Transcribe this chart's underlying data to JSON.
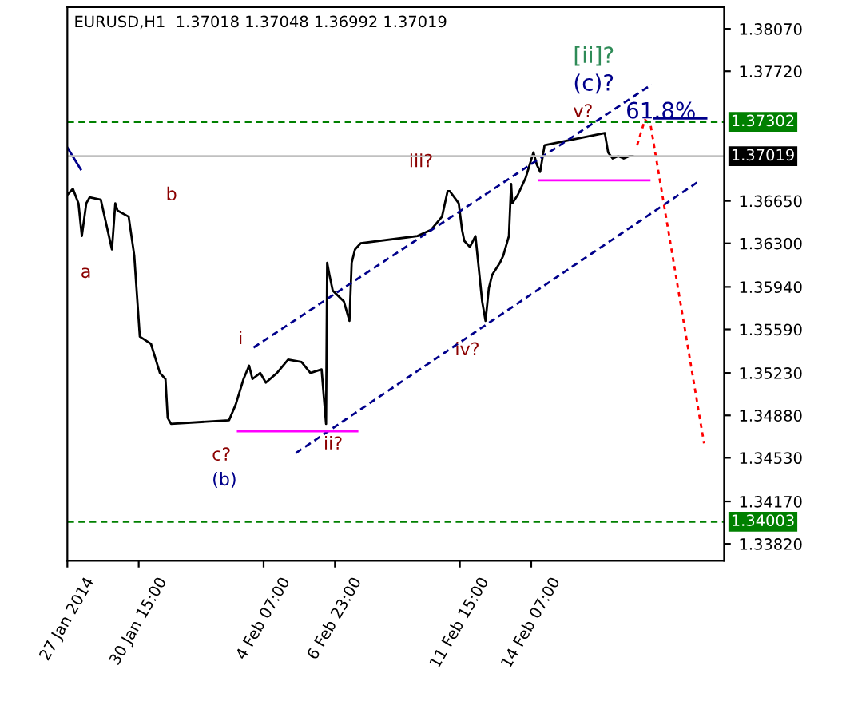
{
  "chart_data": {
    "type": "line",
    "title": "EURUSD,H1  1.37018 1.37048 1.36992 1.37019",
    "series": [
      {
        "color": "#000000",
        "line_style": "solid",
        "x": [
          "2014-01-27T23:00",
          "2014-01-28T04:00",
          "2014-01-28T09:00",
          "2014-01-28T12:00",
          "2014-01-28T16:00",
          "2014-01-28T19:00",
          "2014-01-29T05:00",
          "2014-01-29T15:00",
          "2014-01-29T18:00",
          "2014-01-29T20:00",
          "2014-01-30T06:00",
          "2014-01-30T11:00",
          "2014-01-30T13:00",
          "2014-01-30T16:00",
          "2014-01-30T21:00",
          "2014-01-31T02:00",
          "2014-01-31T10:00",
          "2014-01-31T15:00",
          "2014-01-31T17:00",
          "2014-01-31T20:00",
          "2014-02-03T00:00",
          "2014-02-03T06:00",
          "2014-02-03T13:00",
          "2014-02-03T18:00",
          "2014-02-03T21:00",
          "2014-02-04T04:00",
          "2014-02-04T09:00",
          "2014-02-04T19:00",
          "2014-02-05T05:00",
          "2014-02-05T17:00",
          "2014-02-06T01:00",
          "2014-02-06T11:00",
          "2014-02-06T15:00",
          "2014-02-06T16:00",
          "2014-02-06T18:00",
          "2014-02-06T21:00",
          "2014-02-07T07:00",
          "2014-02-07T12:00",
          "2014-02-07T14:00",
          "2014-02-07T17:00",
          "2014-02-07T22:00",
          "2014-02-10T01:00",
          "2014-02-10T13:00",
          "2014-02-10T23:00",
          "2014-02-11T04:00",
          "2014-02-11T06:00",
          "2014-02-11T14:00",
          "2014-02-11T17:00",
          "2014-02-11T19:00",
          "2014-02-12T00:00",
          "2014-02-12T05:00",
          "2014-02-12T11:00",
          "2014-02-12T14:00",
          "2014-02-12T17:00",
          "2014-02-12T20:00",
          "2014-02-13T03:00",
          "2014-02-13T06:00",
          "2014-02-13T11:00",
          "2014-02-13T13:00",
          "2014-02-13T14:00",
          "2014-02-13T19:00",
          "2014-02-14T02:00",
          "2014-02-14T09:00",
          "2014-02-14T12:00",
          "2014-02-14T15:00",
          "2014-02-14T19:00",
          "2014-02-17T01:00",
          "2014-02-17T04:00",
          "2014-02-17T08:00",
          "2014-02-17T13:00",
          "2014-02-17T18:00",
          "2014-02-17T23:00",
          "2014-02-18T02:00"
        ],
        "values": [
          1.367,
          1.3675,
          1.3663,
          1.3636,
          1.3663,
          1.3668,
          1.3666,
          1.3625,
          1.3663,
          1.3657,
          1.3652,
          1.362,
          1.3593,
          1.3553,
          1.355,
          1.3547,
          1.3523,
          1.3518,
          1.3486,
          1.3481,
          1.3484,
          1.3497,
          1.3518,
          1.3529,
          1.3518,
          1.3523,
          1.3515,
          1.3523,
          1.3534,
          1.3532,
          1.3523,
          1.3526,
          1.3481,
          1.3614,
          1.3604,
          1.3591,
          1.3582,
          1.3566,
          1.3614,
          1.3625,
          1.363,
          1.3636,
          1.3641,
          1.3652,
          1.3673,
          1.3673,
          1.3663,
          1.3641,
          1.3632,
          1.3627,
          1.3636,
          1.3582,
          1.3566,
          1.3593,
          1.3604,
          1.3614,
          1.362,
          1.3636,
          1.3679,
          1.3663,
          1.367,
          1.3684,
          1.3705,
          1.3695,
          1.3689,
          1.3711,
          1.3721,
          1.3705,
          1.37,
          1.3702,
          1.37,
          1.3702,
          1.3702
        ]
      },
      {
        "color": "#00008b",
        "line_style": "dashed",
        "x": [
          "2014-02-03T22:00",
          "2014-02-18T19:00"
        ],
        "values": [
          1.3544,
          1.3761
        ]
      },
      {
        "color": "#00008b",
        "line_style": "dashed",
        "x": [
          "2014-02-05T12:00",
          "2014-02-20T13:00"
        ],
        "values": [
          1.3457,
          1.3681
        ]
      },
      {
        "color": "#00008b",
        "line_style": "solid",
        "x": [
          "2014-01-27T23:00",
          "2014-01-28T11:00"
        ],
        "values": [
          1.3709,
          1.3691
        ]
      },
      {
        "color": "#ff0000",
        "line_style": "dotted",
        "x": [
          "2014-02-18T06:00",
          "2014-02-18T13:00",
          "2014-02-18T18:00",
          "2014-02-20T18:00"
        ],
        "values": [
          1.3711,
          1.3732,
          1.3728,
          1.3465
        ]
      },
      {
        "color": "#ff00ff",
        "line_style": "solid",
        "x": [
          "2014-02-03T08:00",
          "2014-02-07T19:00"
        ],
        "values": [
          1.3475,
          1.3475
        ]
      },
      {
        "color": "#ff00ff",
        "line_style": "solid",
        "x": [
          "2014-02-14T14:00",
          "2014-02-18T17:00"
        ],
        "values": [
          1.3682,
          1.3682
        ]
      },
      {
        "color": "#00008b",
        "line_style": "solid",
        "x": [
          "2014-02-18T21:00",
          "2014-02-20T20:00"
        ],
        "values": [
          1.3733,
          1.3733
        ]
      }
    ],
    "annotations": [
      "a",
      "b",
      "c?",
      "(b)",
      "i",
      "ii?",
      "iii?",
      "iv?",
      "v?",
      "(c)?",
      "[ii]?",
      "61.8%"
    ],
    "ref_lines": [
      {
        "axis": "y",
        "value": 1.37302,
        "label": "1.37302",
        "color": "#008000",
        "line_style": "dashed"
      },
      {
        "axis": "y",
        "value": 1.37019,
        "label": "1.37019",
        "color": "#c0c0c0",
        "line_style": "solid"
      },
      {
        "axis": "y",
        "value": 1.34003,
        "label": "1.34003",
        "color": "#008000",
        "line_style": "dashed"
      }
    ],
    "xlim": [
      "2014-01-27T23:00",
      "2014-02-21T12:00"
    ],
    "ylim": [
      1.3368,
      1.3825
    ],
    "xticks": [
      {
        "value": "2014-01-27T23:00",
        "label": "27 Jan 2014"
      },
      {
        "value": "2014-01-30T15:00",
        "label": "30 Jan 15:00"
      },
      {
        "value": "2014-02-04T07:00",
        "label": "4 Feb 07:00"
      },
      {
        "value": "2014-02-06T23:00",
        "label": "6 Feb 23:00"
      },
      {
        "value": "2014-02-11T15:00",
        "label": "11 Feb 15:00"
      },
      {
        "value": "2014-02-14T07:00",
        "label": "14 Feb 07:00"
      }
    ],
    "yticks": [
      {
        "value": 1.3807,
        "label": "1.38070"
      },
      {
        "value": 1.3772,
        "label": "1.37720"
      },
      {
        "value": 1.3665,
        "label": "1.36650"
      },
      {
        "value": 1.363,
        "label": "1.36300"
      },
      {
        "value": 1.3594,
        "label": "1.35940"
      },
      {
        "value": 1.3559,
        "label": "1.35590"
      },
      {
        "value": 1.3523,
        "label": "1.35230"
      },
      {
        "value": 1.3488,
        "label": "1.34880"
      },
      {
        "value": 1.3453,
        "label": "1.34530"
      },
      {
        "value": 1.3417,
        "label": "1.34170"
      },
      {
        "value": 1.3382,
        "label": "1.33820"
      }
    ],
    "grid": false,
    "legend": false,
    "marker": "none"
  }
}
